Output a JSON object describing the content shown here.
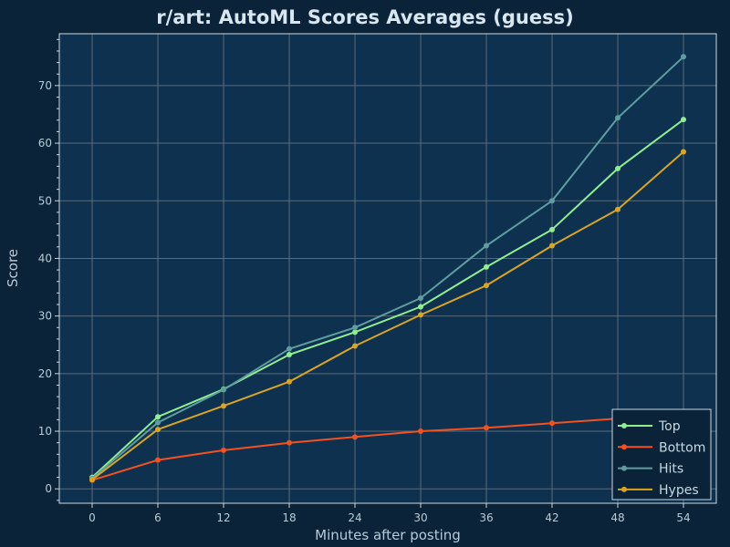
{
  "chart_data": {
    "type": "line",
    "title": "r/art: AutoML Scores Averages (guess)",
    "xlabel": "Minutes after posting",
    "ylabel": "Score",
    "x": [
      0,
      6,
      12,
      18,
      24,
      30,
      36,
      42,
      48,
      54
    ],
    "xticks": [
      0,
      6,
      12,
      18,
      24,
      30,
      36,
      42,
      48,
      54
    ],
    "yticks": [
      0,
      10,
      20,
      30,
      40,
      50,
      60,
      70
    ],
    "xlim": [
      -3,
      57
    ],
    "ylim": [
      -2.5,
      79
    ],
    "grid": true,
    "legend_position": "bottom-right",
    "series": [
      {
        "name": "Top",
        "color": "#90ee90",
        "values": [
          2.0,
          12.5,
          17.3,
          23.3,
          27.2,
          31.6,
          38.5,
          45.0,
          55.6,
          64.1
        ]
      },
      {
        "name": "Bottom",
        "color": "#f4511e",
        "values": [
          1.5,
          5.0,
          6.7,
          8.0,
          9.0,
          10.0,
          10.6,
          11.4,
          12.2,
          12.7
        ]
      },
      {
        "name": "Hits",
        "color": "#5f9ea0",
        "values": [
          1.8,
          11.5,
          17.2,
          24.3,
          28.0,
          33.1,
          42.2,
          50.0,
          64.4,
          75.0
        ]
      },
      {
        "name": "Hypes",
        "color": "#daa520",
        "values": [
          1.6,
          10.3,
          14.4,
          18.6,
          24.8,
          30.2,
          35.3,
          42.2,
          48.5,
          58.5
        ]
      }
    ],
    "colors": {
      "background": "#0b2338",
      "plot_area": "#0e3150",
      "frame": "#c8d8e4",
      "grid": "#5a6a78",
      "text": "#b8cad8"
    }
  }
}
